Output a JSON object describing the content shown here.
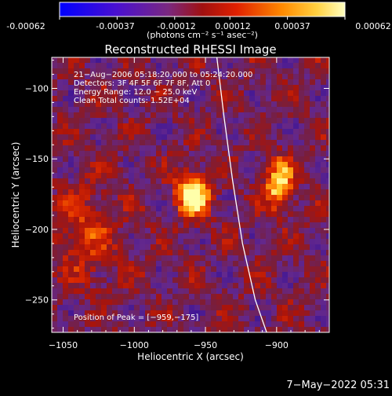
{
  "colorbar": {
    "tick_labels": [
      "-0.00062",
      "-0.00037",
      "-0.00012",
      "0.00012",
      "0.00037",
      "0.00062"
    ],
    "tick_values": [
      -0.00062,
      -0.00037,
      -0.00012,
      0.00012,
      0.00037,
      0.00062
    ],
    "range": [
      -0.00062,
      0.00062
    ],
    "units": "(photons cm⁻² s⁻¹ asec⁻²)",
    "colors": [
      "#0000ff",
      "#5a10c0",
      "#7a2870",
      "#c01010",
      "#ff4a00",
      "#ffb000",
      "#ffffa0"
    ]
  },
  "chart_data": {
    "type": "heatmap",
    "title": "Reconstructed RHESSI Image",
    "xlabel": "Heliocentric X (arcsec)",
    "ylabel": "Heliocentric Y (arcsec)",
    "xlim": [
      -1058,
      -863
    ],
    "ylim": [
      -273,
      -78
    ],
    "x_ticks": [
      -1050,
      -1000,
      -950,
      -900
    ],
    "x_tick_labels": [
      "−1050",
      "−1000",
      "−950",
      "−900"
    ],
    "y_ticks": [
      -100,
      -150,
      -200,
      -250
    ],
    "y_tick_labels": [
      "−100",
      "−150",
      "−200",
      "−250"
    ],
    "grid": false,
    "sources": [
      {
        "x": -959,
        "y": -175,
        "peak": 0.00062
      },
      {
        "x": -898,
        "y": -168,
        "peak": 0.00052
      }
    ],
    "limb_curve": [
      [
        -942,
        -78
      ],
      [
        -937,
        -120
      ],
      [
        -931,
        -165
      ],
      [
        -924,
        -210
      ],
      [
        -915,
        -250
      ],
      [
        -907,
        -273
      ]
    ]
  },
  "annotations": {
    "time_range": "21−Aug−2006 05:18:20.000 to 05:24:20.000",
    "detectors": "Detectors: 3F 4F 5F 6F 7F 8F, Att 0",
    "energy": "Energy Range: 12.0 − 25.0 keV",
    "clean": "Clean     Total counts: 1.52E+04",
    "peak_position": "Position of Peak = [−959,−175]"
  },
  "footer": {
    "date": "7−May−2022 05:31"
  }
}
